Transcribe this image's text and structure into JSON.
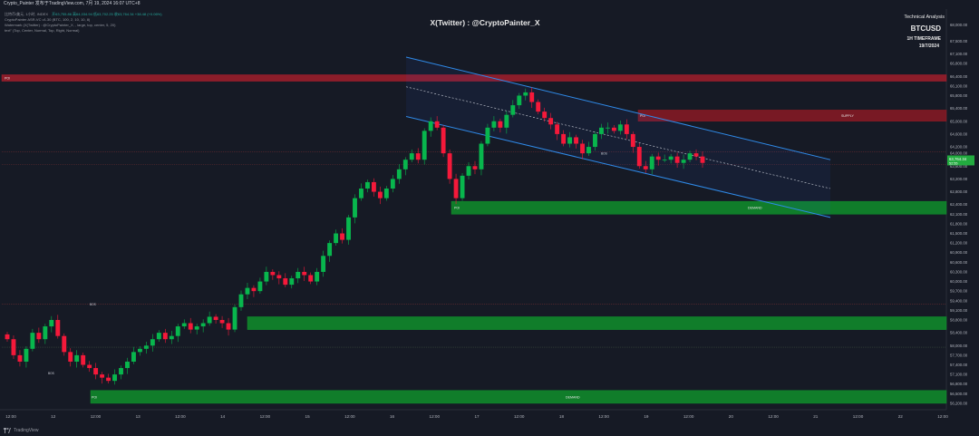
{
  "header": {
    "title": "Crypto_Painter 发布于TradingView.com, 7月 19, 2024 16:07 UTC+8",
    "symbol_line": "比特币/美元, 1小时, INDEX",
    "symbol_values": "开63,755.86 高64,034.94 低63,702.25 收63,764.34 +38.48 (+0.06%)",
    "indicator_1": "CryptoPainter ASR-VC v1.30 (BTC, 100, 2, 10, 10, 8)",
    "indicator_2": "Watermark (X(Twitter) : @CryptoPainter_X, , large, top, center, 5, 20)",
    "indicator_3": "text\" (Top, Center, Normal, Top, Right, Normal)",
    "currency_button": "USD",
    "brand": "TradingView"
  },
  "watermark": "X(Twitter) : @CryptoPainter_X",
  "panel": {
    "line1": "Technical Analysis",
    "line2": "BTCUSD",
    "line3": "1H TIMEFRAME",
    "line4": "19/7/2024"
  },
  "colors": {
    "background": "#161a25",
    "up": "#26a69a",
    "down": "#ef5350",
    "up_candle": "#08b64d",
    "down_candle": "#f5193a",
    "channel": "#2f8ae8",
    "demand_zone": "#0e8a2a",
    "supply_zone": "#8a1a24"
  },
  "chart_data": {
    "type": "candlestick",
    "x_axis_labels": [
      "12:00",
      "12",
      "12:00",
      "13",
      "12:00",
      "14",
      "12:00",
      "15",
      "12:00",
      "16",
      "12:00",
      "17",
      "12:00",
      "18",
      "12:00",
      "19",
      "12:00",
      "20",
      "12:00",
      "21",
      "12:00",
      "22",
      "12:00"
    ],
    "y_axis": {
      "min": 56000,
      "max": 68500,
      "ticks": [
        56200,
        56500,
        56800,
        57100,
        57400,
        57700,
        58000,
        58400,
        58800,
        59100,
        59400,
        59700,
        60000,
        60300,
        60600,
        60900,
        61200,
        61500,
        61800,
        62100,
        62400,
        62800,
        63200,
        63600,
        64000,
        64200,
        64600,
        65000,
        65400,
        65800,
        66100,
        66400,
        66800,
        67100,
        67500,
        68000
      ],
      "tick_labels": [
        "56,200.00",
        "56,500.00",
        "56,800.00",
        "57,100.00",
        "57,400.00",
        "57,700.00",
        "58,000.00",
        "58,400.00",
        "58,800.00",
        "59,100.00",
        "59,400.00",
        "59,700.00",
        "60,000.00",
        "60,300.00",
        "60,600.00",
        "60,900.00",
        "61,200.00",
        "61,500.00",
        "61,800.00",
        "62,100.00",
        "62,400.00",
        "62,800.00",
        "63,200.00",
        "63,600.00",
        "64,000.00",
        "64,200.00",
        "64,600.00",
        "65,000.00",
        "65,400.00",
        "65,800.00",
        "66,100.00",
        "66,400.00",
        "66,800.00",
        "67,100.00",
        "67,500.00",
        "68,000.00"
      ]
    },
    "price_label": {
      "value": "63,764.34",
      "sub": "52:55"
    },
    "closes": [
      58200,
      57700,
      57500,
      57900,
      58400,
      58200,
      58600,
      58800,
      58300,
      57800,
      57500,
      57700,
      57400,
      57300,
      57100,
      57000,
      56900,
      57100,
      57300,
      57500,
      57800,
      57900,
      58000,
      58200,
      58400,
      58200,
      58300,
      58600,
      58700,
      58500,
      58600,
      58700,
      58900,
      58800,
      58700,
      58500,
      59200,
      59600,
      59800,
      59700,
      60000,
      60300,
      60200,
      60100,
      59900,
      60100,
      60300,
      60200,
      60000,
      60300,
      60800,
      61200,
      61500,
      61300,
      62000,
      62600,
      62900,
      63100,
      62800,
      62600,
      62900,
      63200,
      63500,
      63800,
      64000,
      63800,
      64700,
      65000,
      64800,
      64000,
      63200,
      62600,
      63300,
      63600,
      63500,
      64300,
      64800,
      65000,
      64800,
      65200,
      65500,
      65800,
      65900,
      65600,
      65300,
      65100,
      64900,
      64600,
      64300,
      64500,
      64300,
      64000,
      64200,
      64600,
      64800,
      64800,
      64700,
      64900,
      64600,
      64200,
      63600,
      63500,
      63900,
      63800,
      63800,
      63900,
      63700,
      63800,
      64000,
      63900,
      63700
    ]
  }
}
